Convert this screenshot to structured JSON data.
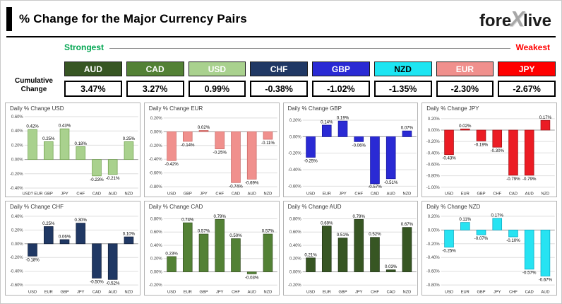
{
  "header": {
    "title": "% Change for the Major Currency Pairs",
    "logo_fore": "fore",
    "logo_x": "X",
    "logo_live": "live"
  },
  "labels": {
    "strongest": "Strongest",
    "weakest": "Weakest",
    "cumulative_line1": "Cumulative",
    "cumulative_line2": "Change"
  },
  "cumulative": {
    "items": [
      {
        "currency": "AUD",
        "value": "3.47%",
        "color": "#375623",
        "text_color": "#ffffff"
      },
      {
        "currency": "CAD",
        "value": "3.27%",
        "color": "#538135",
        "text_color": "#ffffff"
      },
      {
        "currency": "USD",
        "value": "0.99%",
        "color": "#a9d18e",
        "text_color": "#ffffff"
      },
      {
        "currency": "CHF",
        "value": "-0.38%",
        "color": "#203864",
        "text_color": "#ffffff"
      },
      {
        "currency": "GBP",
        "value": "-1.02%",
        "color": "#2a2ad4",
        "text_color": "#ffffff"
      },
      {
        "currency": "NZD",
        "value": "-1.35%",
        "color": "#1de5f2",
        "text_color": "#000000"
      },
      {
        "currency": "EUR",
        "value": "-2.30%",
        "color": "#f0908d",
        "text_color": "#ffffff"
      },
      {
        "currency": "JPY",
        "value": "-2.67%",
        "color": "#ff0000",
        "text_color": "#ffffff"
      }
    ]
  },
  "chart_data": [
    {
      "type": "bar",
      "title": "Daily % Change USD",
      "fill": "#a9d18e",
      "stroke": "#70a14e",
      "ylim": [
        -0.42,
        0.62
      ],
      "yticks": [
        "0.60%",
        "0.40%",
        "0.20%",
        "0.00%",
        "-0.20%",
        "-0.40%"
      ],
      "categories": [
        "USD? EUR",
        "GBP",
        "JPY",
        "CHF",
        "CAD",
        "AUD",
        "NZD"
      ],
      "values": [
        0.42,
        0.25,
        0.43,
        0.18,
        -0.23,
        -0.21,
        0.25
      ],
      "labels": [
        "0.42%",
        "0.25%",
        "0.43%",
        "0.18%",
        "-0.23%",
        "-0.21%",
        "0.25%"
      ]
    },
    {
      "type": "bar",
      "title": "Daily % Change EUR",
      "fill": "#f0908d",
      "stroke": "#c96a67",
      "ylim": [
        -0.84,
        0.24
      ],
      "yticks": [
        "0.20%",
        "0.00%",
        "-0.20%",
        "-0.40%",
        "-0.60%",
        "-0.80%"
      ],
      "categories": [
        "USD",
        "GBP",
        "JPY",
        "CHF",
        "CAD",
        "AUD",
        "NZD"
      ],
      "values": [
        -0.42,
        -0.14,
        0.02,
        -0.25,
        -0.74,
        -0.69,
        -0.11
      ],
      "labels": [
        "-0.42%",
        "-0.14%",
        "0.02%",
        "-0.25%",
        "-0.74%",
        "-0.69%",
        "-0.11%"
      ]
    },
    {
      "type": "bar",
      "title": "Daily % Change GBP",
      "fill": "#2a2ad4",
      "stroke": "#15159e",
      "ylim": [
        -0.64,
        0.26
      ],
      "yticks": [
        "0.20%",
        "0.00%",
        "-0.20%",
        "-0.40%",
        "-0.60%"
      ],
      "categories": [
        "USD",
        "EUR",
        "JPY",
        "CHF",
        "CAD",
        "AUD",
        "NZD"
      ],
      "values": [
        -0.25,
        0.14,
        0.19,
        -0.06,
        -0.57,
        -0.51,
        0.07
      ],
      "labels": [
        "-0.25%",
        "0.14%",
        "0.19%",
        "-0.06%",
        "-0.57%",
        "-0.51%",
        "0.07%"
      ]
    },
    {
      "type": "bar",
      "title": "Daily % Change JPY",
      "fill": "#eb1c24",
      "stroke": "#a31116",
      "ylim": [
        -1.04,
        0.26
      ],
      "yticks": [
        "0.20%",
        "0.00%",
        "-0.20%",
        "-0.40%",
        "-0.60%",
        "-0.80%",
        "-1.00%"
      ],
      "categories": [
        "USD",
        "EUR",
        "GBP",
        "CHF",
        "CAD",
        "AUD",
        "NZD"
      ],
      "values": [
        -0.43,
        0.02,
        -0.19,
        -0.3,
        -0.79,
        -0.79,
        0.17
      ],
      "labels": [
        "-0.43%",
        "0.02%",
        "-0.19%",
        "-0.30%",
        "-0.79%",
        "-0.79%",
        "0.17%"
      ]
    },
    {
      "type": "bar",
      "title": "Daily % Change CHF",
      "fill": "#203864",
      "stroke": "#121f3a",
      "ylim": [
        -0.64,
        0.44
      ],
      "yticks": [
        "0.40%",
        "0.20%",
        "0.00%",
        "-0.20%",
        "-0.40%",
        "-0.60%"
      ],
      "categories": [
        "USD",
        "EUR",
        "GBP",
        "JPY",
        "CAD",
        "AUD",
        "NZD"
      ],
      "values": [
        -0.18,
        0.25,
        0.06,
        0.3,
        -0.5,
        -0.52,
        0.1
      ],
      "labels": [
        "-0.18%",
        "0.25%",
        "0.06%",
        "0.30%",
        "-0.50%",
        "-0.52%",
        "0.10%"
      ]
    },
    {
      "type": "bar",
      "title": "Daily % Change CAD",
      "fill": "#538135",
      "stroke": "#375222",
      "ylim": [
        -0.24,
        0.88
      ],
      "yticks": [
        "0.80%",
        "0.60%",
        "0.40%",
        "0.20%",
        "0.00%",
        "-0.20%"
      ],
      "categories": [
        "USD",
        "EUR",
        "GBP",
        "JPY",
        "CHF",
        "AUD",
        "NZD"
      ],
      "values": [
        0.23,
        0.74,
        0.57,
        0.79,
        0.5,
        -0.03,
        0.57
      ],
      "labels": [
        "0.23%",
        "0.74%",
        "0.57%",
        "0.79%",
        "0.50%",
        "-0.03%",
        "0.57%"
      ]
    },
    {
      "type": "bar",
      "title": "Daily % Change AUD",
      "fill": "#375623",
      "stroke": "#1f3312",
      "ylim": [
        -0.24,
        0.88
      ],
      "yticks": [
        "0.80%",
        "0.60%",
        "0.40%",
        "0.20%",
        "0.00%",
        "-0.20%"
      ],
      "categories": [
        "USD",
        "EUR",
        "GBP",
        "JPY",
        "CHF",
        "CAD",
        "NZD"
      ],
      "values": [
        0.21,
        0.69,
        0.51,
        0.79,
        0.52,
        0.03,
        0.67
      ],
      "labels": [
        "0.21%",
        "0.69%",
        "0.51%",
        "0.79%",
        "0.52%",
        "0.03%",
        "0.67%"
      ]
    },
    {
      "type": "bar",
      "title": "Daily % Change NZD",
      "fill": "#27e3f2",
      "stroke": "#0aa8c2",
      "ylim": [
        -0.84,
        0.24
      ],
      "yticks": [
        "0.20%",
        "0.00%",
        "-0.20%",
        "-0.40%",
        "-0.60%",
        "-0.80%"
      ],
      "categories": [
        "USD",
        "EUR",
        "GBP",
        "JPY",
        "CHF",
        "CAD",
        "AUD"
      ],
      "values": [
        -0.25,
        0.11,
        -0.07,
        0.17,
        -0.1,
        -0.57,
        -0.67
      ],
      "labels": [
        "-0.25%",
        "0.11%",
        "-0.07%",
        "0.17%",
        "-0.10%",
        "-0.57%",
        "-0.67%"
      ]
    }
  ]
}
